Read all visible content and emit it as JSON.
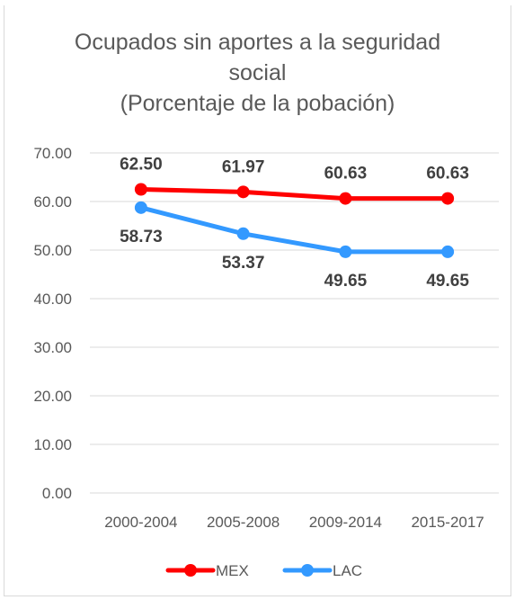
{
  "chart_data": {
    "type": "line",
    "title_lines": [
      "Ocupados sin aportes a la seguridad",
      "social",
      "(Porcentaje de la pobación)"
    ],
    "categories": [
      "2000-2004",
      "2005-2008",
      "2009-2014",
      "2015-2017"
    ],
    "y_ticks": [
      "0.00",
      "10.00",
      "20.00",
      "30.00",
      "40.00",
      "50.00",
      "60.00",
      "70.00"
    ],
    "ylim": [
      0,
      70
    ],
    "grid": true,
    "legend_position": "bottom",
    "series": [
      {
        "name": "MEX",
        "color": "#ff0000",
        "values": [
          62.5,
          61.97,
          60.63,
          60.63
        ],
        "labels": [
          "62.50",
          "61.97",
          "60.63",
          "60.63"
        ],
        "label_position": "above"
      },
      {
        "name": "LAC",
        "color": "#3399ff",
        "values": [
          58.73,
          53.37,
          49.65,
          49.65
        ],
        "labels": [
          "58.73",
          "53.37",
          "49.65",
          "49.65"
        ],
        "label_position": "below"
      }
    ]
  }
}
